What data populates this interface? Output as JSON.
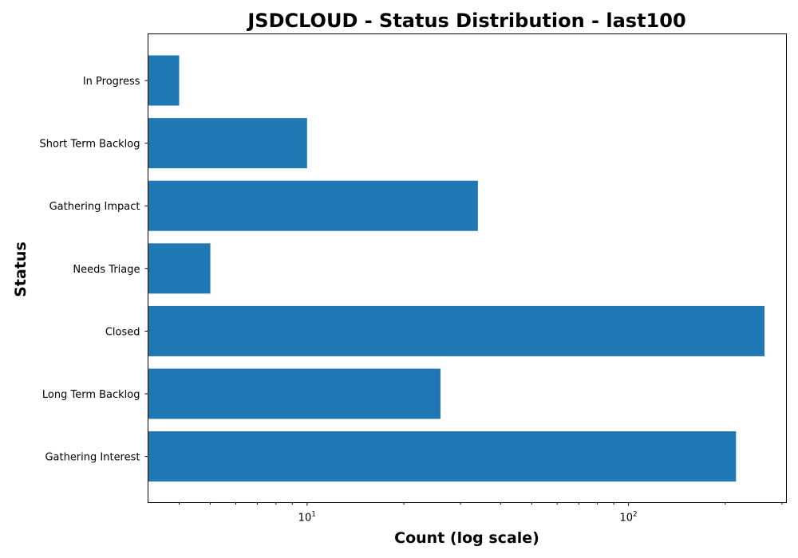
{
  "chart_data": {
    "type": "bar",
    "orientation": "horizontal",
    "title": "JSDCLOUD - Status Distribution - last100",
    "xlabel": "Count (log scale)",
    "ylabel": "Status",
    "x_scale": "log",
    "xlim": [
      3.2,
      310
    ],
    "grid": false,
    "legend": "none",
    "bar_color": "#1f77b4",
    "categories": [
      "In Progress",
      "Short Term Backlog",
      "Gathering Impact",
      "Needs Triage",
      "Closed",
      "Long Term Backlog",
      "Gathering Interest"
    ],
    "values": [
      4,
      10,
      34,
      5,
      265,
      26,
      216
    ],
    "x_ticks": [
      {
        "base": "10",
        "exponent": "1",
        "value": 10
      },
      {
        "base": "10",
        "exponent": "2",
        "value": 100
      }
    ]
  }
}
